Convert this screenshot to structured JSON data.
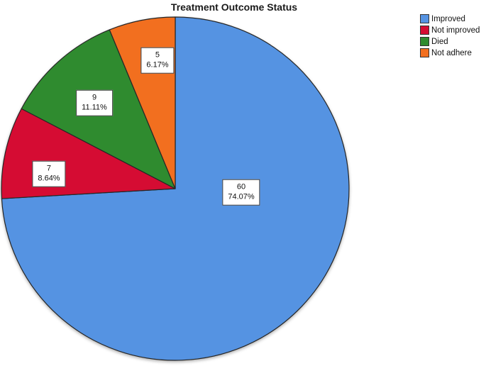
{
  "title": "Treatment Outcome Status",
  "background_color": "#ffffff",
  "chart_data": {
    "type": "pie",
    "title": "Treatment Outcome Status",
    "start_angle": "top",
    "direction": "clockwise",
    "legend_position": "top-right",
    "total": 81,
    "slices": [
      {
        "id": "improved",
        "label": "Improved",
        "value": 60,
        "count_label": "60",
        "pct_label": "74.07%",
        "color": "#5593E2"
      },
      {
        "id": "not-improved",
        "label": "Not improved",
        "value": 7,
        "count_label": "7",
        "pct_label": "8.64%",
        "color": "#D50C33"
      },
      {
        "id": "died",
        "label": "Died",
        "value": 9,
        "count_label": "9",
        "pct_label": "11.11%",
        "color": "#2F8B2F"
      },
      {
        "id": "not-adhere",
        "label": "Not adhere",
        "value": 5,
        "count_label": "5",
        "pct_label": "6.17%",
        "color": "#F26F1F"
      }
    ],
    "slice_border_color": "#262626",
    "label_box": {
      "background": "#ffffff",
      "border_color": "#3a3a3a"
    }
  }
}
